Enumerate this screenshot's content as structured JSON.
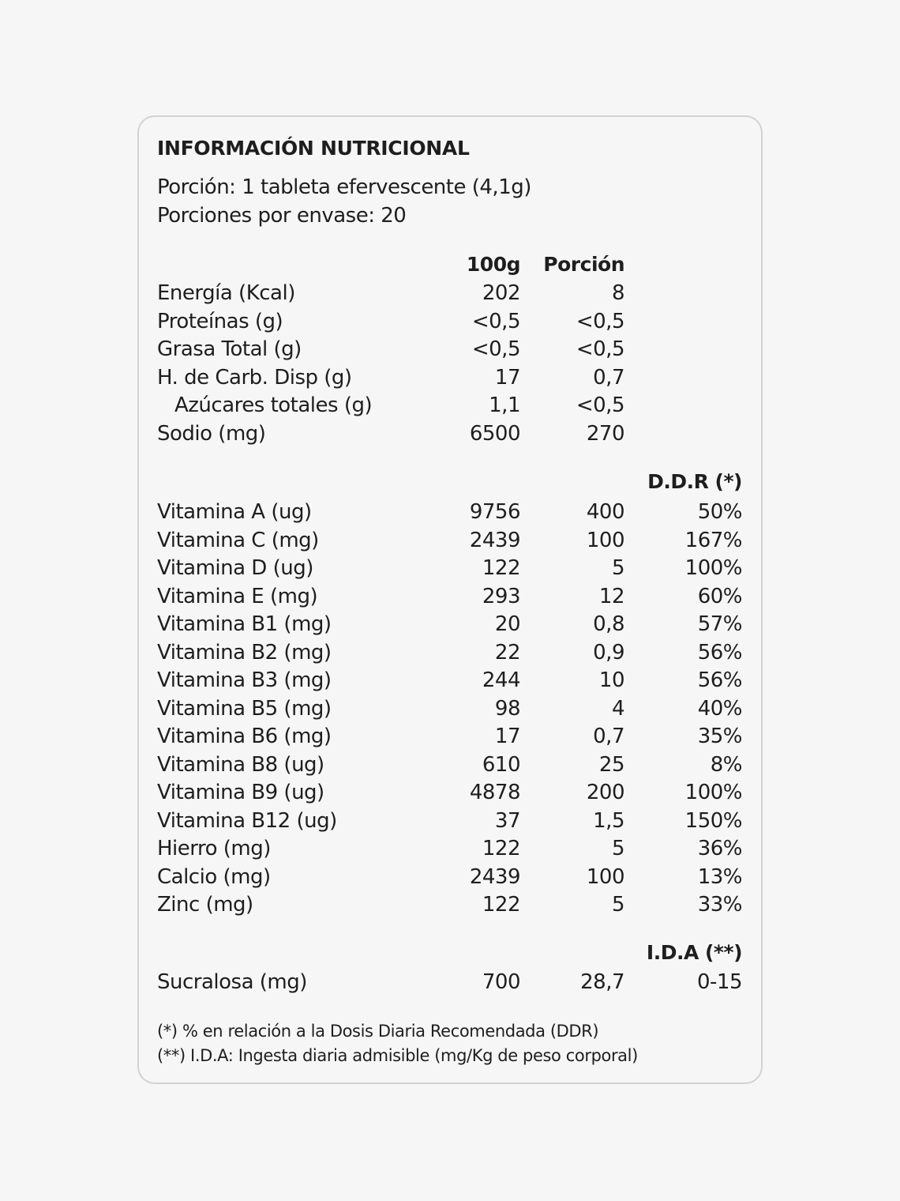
{
  "title": "INFORMACIÓN NUTRICIONAL",
  "serving": "Porción: 1 tableta efervescente (4,1g)",
  "servings_per_container": "Porciones por envase: 20",
  "columns": {
    "per100": "100g",
    "portion": "Porción",
    "ddr": "D.D.R (*)",
    "ida": "I.D.A (**)"
  },
  "nutrients": [
    {
      "name": "Energía (Kcal)",
      "per100": "202",
      "portion": "8"
    },
    {
      "name": "Proteínas (g)",
      "per100": "<0,5",
      "portion": "<0,5"
    },
    {
      "name": "Grasa Total (g)",
      "per100": "<0,5",
      "portion": "<0,5"
    },
    {
      "name": "H. de Carb. Disp (g)",
      "per100": "17",
      "portion": "0,7"
    },
    {
      "name": "Azúcares totales (g)",
      "per100": "1,1",
      "portion": "<0,5",
      "indent": true
    },
    {
      "name": "Sodio (mg)",
      "per100": "6500",
      "portion": "270"
    }
  ],
  "vitamins": [
    {
      "name": "Vitamina A (ug)",
      "per100": "9756",
      "portion": "400",
      "ddr": "50%"
    },
    {
      "name": "Vitamina C (mg)",
      "per100": "2439",
      "portion": "100",
      "ddr": "167%"
    },
    {
      "name": "Vitamina D (ug)",
      "per100": "122",
      "portion": "5",
      "ddr": "100%"
    },
    {
      "name": "Vitamina E (mg)",
      "per100": "293",
      "portion": "12",
      "ddr": "60%"
    },
    {
      "name": "Vitamina B1 (mg)",
      "per100": "20",
      "portion": "0,8",
      "ddr": "57%"
    },
    {
      "name": "Vitamina B2 (mg)",
      "per100": "22",
      "portion": "0,9",
      "ddr": "56%"
    },
    {
      "name": "Vitamina B3 (mg)",
      "per100": "244",
      "portion": "10",
      "ddr": "56%"
    },
    {
      "name": "Vitamina B5 (mg)",
      "per100": "98",
      "portion": "4",
      "ddr": "40%"
    },
    {
      "name": "Vitamina B6 (mg)",
      "per100": "17",
      "portion": "0,7",
      "ddr": "35%"
    },
    {
      "name": "Vitamina B8 (ug)",
      "per100": "610",
      "portion": "25",
      "ddr": "8%"
    },
    {
      "name": "Vitamina B9 (ug)",
      "per100": "4878",
      "portion": "200",
      "ddr": "100%"
    },
    {
      "name": "Vitamina B12 (ug)",
      "per100": "37",
      "portion": "1,5",
      "ddr": "150%"
    },
    {
      "name": "Hierro (mg)",
      "per100": "122",
      "portion": "5",
      "ddr": "36%"
    },
    {
      "name": "Calcio (mg)",
      "per100": "2439",
      "portion": "100",
      "ddr": "13%"
    },
    {
      "name": "Zinc (mg)",
      "per100": "122",
      "portion": "5",
      "ddr": "33%"
    }
  ],
  "sweetener": {
    "name": "Sucralosa (mg)",
    "per100": "700",
    "portion": "28,7",
    "ida": "0-15"
  },
  "footnotes": [
    "(*) % en relación a la Dosis Diaria Recomendada (DDR)",
    "(**) I.D.A: Ingesta diaria admisible (mg/Kg de peso corporal)"
  ]
}
